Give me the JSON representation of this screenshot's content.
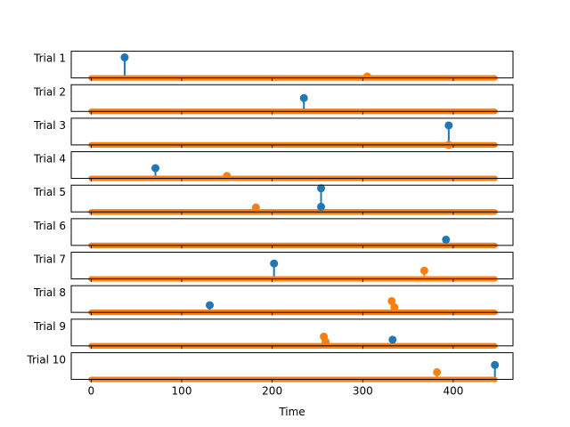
{
  "chart_data": {
    "type": "stem",
    "xlabel": "Time",
    "x_ticks": [
      0,
      100,
      200,
      300,
      400
    ],
    "xlim": [
      -22,
      466
    ],
    "trials": [
      {
        "name": "Trial 1",
        "ylim": [
          0,
          1.3
        ],
        "stems": [
          {
            "series": "blue",
            "x": 37,
            "y": 1.0
          },
          {
            "series": "orange",
            "x": 305,
            "y": 0.07
          }
        ]
      },
      {
        "name": "Trial 2",
        "ylim": [
          0,
          1.3
        ],
        "stems": [
          {
            "series": "blue",
            "x": 235,
            "y": 0.65
          }
        ]
      },
      {
        "name": "Trial 3",
        "ylim": [
          0,
          1.3
        ],
        "stems": [
          {
            "series": "blue",
            "x": 395,
            "y": 0.95
          },
          {
            "series": "orange",
            "x": 395,
            "y": 0.0
          }
        ]
      },
      {
        "name": "Trial 4",
        "ylim": [
          0,
          1.3
        ],
        "stems": [
          {
            "series": "blue",
            "x": 71,
            "y": 0.5
          },
          {
            "series": "orange",
            "x": 150,
            "y": 0.12
          }
        ]
      },
      {
        "name": "Trial 5",
        "ylim": [
          0,
          1.3
        ],
        "stems": [
          {
            "series": "blue",
            "x": 254,
            "y": 1.15
          },
          {
            "series": "blue",
            "x": 254,
            "y": 0.25
          },
          {
            "series": "orange",
            "x": 182,
            "y": 0.22
          }
        ]
      },
      {
        "name": "Trial 6",
        "ylim": [
          0,
          1.3
        ],
        "stems": [
          {
            "series": "blue",
            "x": 392,
            "y": 0.28
          }
        ]
      },
      {
        "name": "Trial 7",
        "ylim": [
          0,
          1.3
        ],
        "stems": [
          {
            "series": "blue",
            "x": 202,
            "y": 0.75
          },
          {
            "series": "orange",
            "x": 368,
            "y": 0.4
          }
        ]
      },
      {
        "name": "Trial 8",
        "ylim": [
          0,
          1.3
        ],
        "stems": [
          {
            "series": "blue",
            "x": 131,
            "y": 0.35
          },
          {
            "series": "orange",
            "x": 332,
            "y": 0.55
          },
          {
            "series": "orange",
            "x": 335,
            "y": 0.25
          }
        ]
      },
      {
        "name": "Trial 9",
        "ylim": [
          0,
          1.3
        ],
        "stems": [
          {
            "series": "blue",
            "x": 333,
            "y": 0.3
          },
          {
            "series": "orange",
            "x": 257,
            "y": 0.45
          },
          {
            "series": "orange",
            "x": 259,
            "y": 0.2
          }
        ]
      },
      {
        "name": "Trial 10",
        "ylim": [
          0,
          1.3
        ],
        "stems": [
          {
            "series": "blue",
            "x": 446,
            "y": 0.7
          },
          {
            "series": "orange",
            "x": 382,
            "y": 0.35
          }
        ]
      }
    ],
    "baseline": {
      "x_start": 0,
      "x_end": 446
    },
    "colors": {
      "blue": "#1f77b4",
      "orange": "#ff7f0e",
      "axis": "#000000",
      "background": "#ffffff"
    }
  }
}
